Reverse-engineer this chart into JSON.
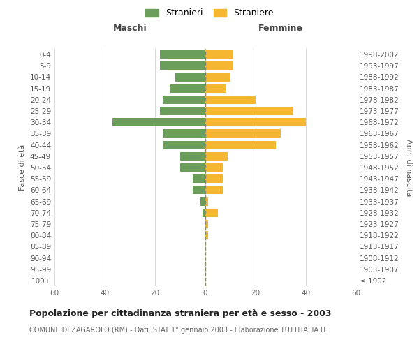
{
  "age_groups": [
    "100+",
    "95-99",
    "90-94",
    "85-89",
    "80-84",
    "75-79",
    "70-74",
    "65-69",
    "60-64",
    "55-59",
    "50-54",
    "45-49",
    "40-44",
    "35-39",
    "30-34",
    "25-29",
    "20-24",
    "15-19",
    "10-14",
    "5-9",
    "0-4"
  ],
  "birth_years": [
    "≤ 1902",
    "1903-1907",
    "1908-1912",
    "1913-1917",
    "1918-1922",
    "1923-1927",
    "1928-1932",
    "1933-1937",
    "1938-1942",
    "1943-1947",
    "1948-1952",
    "1953-1957",
    "1958-1962",
    "1963-1967",
    "1968-1972",
    "1973-1977",
    "1978-1982",
    "1983-1987",
    "1988-1992",
    "1993-1997",
    "1998-2002"
  ],
  "males": [
    0,
    0,
    0,
    0,
    0,
    0,
    1,
    2,
    5,
    5,
    10,
    10,
    17,
    17,
    37,
    18,
    17,
    14,
    12,
    18,
    18
  ],
  "females": [
    0,
    0,
    0,
    0,
    1,
    1,
    5,
    1,
    7,
    7,
    7,
    9,
    28,
    30,
    40,
    35,
    20,
    8,
    10,
    11,
    11
  ],
  "male_color": "#6a9e5a",
  "female_color": "#f5b731",
  "grid_color": "#cccccc",
  "dashed_line_color": "#888866",
  "title": "Popolazione per cittadinanza straniera per età e sesso - 2003",
  "subtitle": "COMUNE DI ZAGAROLO (RM) - Dati ISTAT 1° gennaio 2003 - Elaborazione TUTTITALIA.IT",
  "ylabel_left": "Fasce di età",
  "ylabel_right": "Anni di nascita",
  "xlabel_left": "Maschi",
  "xlabel_right": "Femmine",
  "legend_stranieri": "Stranieri",
  "legend_straniere": "Straniere",
  "xlim": 60,
  "background_color": "#ffffff"
}
